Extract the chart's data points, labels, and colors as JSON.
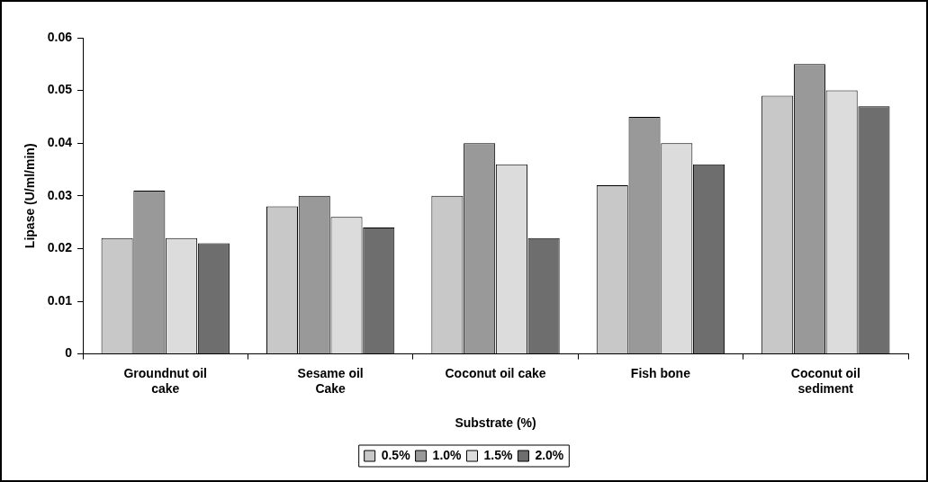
{
  "chart_data": {
    "type": "bar",
    "xlabel": "Substrate (%)",
    "ylabel": "Lipase (U/ml/min)",
    "categories": [
      "Groundnut oil\ncake",
      "Sesame oil\nCake",
      "Coconut oil cake",
      "Fish bone",
      "Coconut oil\nsediment"
    ],
    "series": [
      {
        "name": "0.5%",
        "color": "#c8c8c8",
        "values": [
          0.022,
          0.028,
          0.03,
          0.032,
          0.049
        ]
      },
      {
        "name": "1.0%",
        "color": "#999999",
        "values": [
          0.031,
          0.03,
          0.04,
          0.045,
          0.055
        ]
      },
      {
        "name": "1.5%",
        "color": "#dcdcdc",
        "values": [
          0.022,
          0.026,
          0.036,
          0.04,
          0.05
        ]
      },
      {
        "name": "2.0%",
        "color": "#6e6e6e",
        "values": [
          0.021,
          0.024,
          0.022,
          0.036,
          0.047
        ]
      }
    ],
    "ylim": [
      0,
      0.06
    ],
    "yticks": [
      0,
      0.01,
      0.02,
      0.03,
      0.04,
      0.05,
      0.06
    ],
    "grid": false,
    "legend": "bottom"
  }
}
